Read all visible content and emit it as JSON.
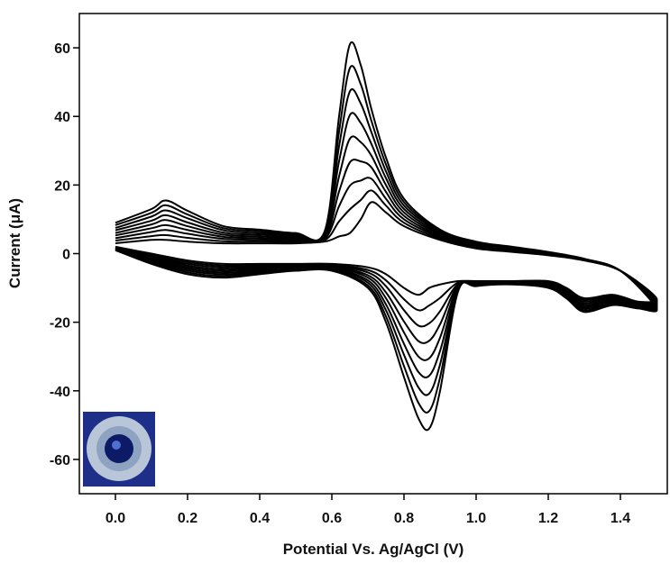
{
  "chart_data": {
    "type": "line",
    "xlabel": "Potential Vs. Ag/AgCl (V)",
    "ylabel": "Current (μA)",
    "xlim": [
      -0.1,
      1.53
    ],
    "ylim": [
      -70,
      70
    ],
    "xticks": [
      {
        "value": 0,
        "label": "0.0"
      },
      0.2,
      0.4,
      0.6,
      0.8,
      {
        "value": 1,
        "label": "1.0"
      },
      1.2,
      1.4
    ],
    "yticks": [
      -60,
      -40,
      -20,
      0,
      20,
      40,
      60
    ],
    "x": [
      0,
      0.1,
      0.14,
      0.2,
      0.3,
      0.4,
      0.5,
      0.58,
      0.62,
      0.65,
      0.68,
      0.71,
      0.75,
      0.8,
      0.9,
      1.0,
      1.1,
      1.2,
      1.3,
      1.4,
      1.5,
      1.45,
      1.38,
      1.3,
      1.25,
      1.2,
      1.1,
      1.0,
      0.95,
      0.9,
      0.87,
      0.84,
      0.8,
      0.75,
      0.7,
      0.6,
      0.5,
      0.4,
      0.3,
      0.2,
      0.1,
      0
    ],
    "series": [
      {
        "color": "#000000",
        "values": [
          3,
          4,
          4,
          3.5,
          3,
          3,
          3,
          3.5,
          5,
          6,
          10,
          15,
          12,
          8,
          4,
          1.5,
          0.5,
          -0.5,
          -2,
          -5,
          -13,
          -14,
          -12,
          -13,
          -10,
          -8,
          -8,
          -8,
          -8,
          -9,
          -10,
          -12,
          -10,
          -6,
          -4,
          -3,
          -3,
          -3,
          -3,
          -2,
          0,
          2
        ]
      },
      {
        "color": "#000000",
        "values": [
          3.8,
          5.1,
          5.4,
          4.6,
          3.6,
          3.5,
          3.4,
          3.9,
          9.4,
          12.9,
          15.6,
          18.4,
          14,
          9,
          4.4,
          1.8,
          0.7,
          -0.4,
          -1.9,
          -5,
          -13.4,
          -14.3,
          -12.4,
          -13.5,
          -10.4,
          -8.3,
          -8.1,
          -8.2,
          -8.4,
          -12.9,
          -15.1,
          -16.5,
          -13.3,
          -7.8,
          -4.8,
          -3.3,
          -3.3,
          -3.4,
          -3.5,
          -2.5,
          -0.4,
          1.9
        ]
      },
      {
        "color": "#000000",
        "values": [
          4.5,
          6.3,
          6.9,
          5.8,
          4.3,
          4,
          3.8,
          4.3,
          13.8,
          19.8,
          21.3,
          21.8,
          16,
          10,
          4.8,
          2,
          0.9,
          -0.3,
          -1.9,
          -5,
          -13.8,
          -14.5,
          -12.8,
          -14,
          -10.8,
          -8.5,
          -8.3,
          -8.4,
          -8.8,
          -16.8,
          -20.3,
          -21,
          -16.5,
          -9.5,
          -5.5,
          -3.5,
          -3.5,
          -3.8,
          -4,
          -3,
          -0.8,
          1.8
        ]
      },
      {
        "color": "#000000",
        "values": [
          5.3,
          7.4,
          8.3,
          6.9,
          4.9,
          4.5,
          4.1,
          4.6,
          18.1,
          26.6,
          26.9,
          25.1,
          18,
          11,
          5.1,
          2.3,
          1.1,
          -0.1,
          -1.8,
          -5,
          -14.1,
          -14.8,
          -13.1,
          -14.5,
          -11.1,
          -8.8,
          -8.4,
          -8.6,
          -9.1,
          -20.6,
          -25.4,
          -25.5,
          -19.8,
          -11.3,
          -6.3,
          -3.8,
          -3.8,
          -4.1,
          -4.5,
          -3.5,
          -1.1,
          1.6
        ]
      },
      {
        "color": "#000000",
        "values": [
          6,
          8.5,
          9.8,
          8,
          5.5,
          5,
          4.5,
          5,
          22.5,
          33.5,
          32.5,
          28.5,
          20,
          12,
          5.5,
          2.5,
          1.3,
          0,
          -1.8,
          -5,
          -14.5,
          -15,
          -13.5,
          -15,
          -11.5,
          -9,
          -8.5,
          -8.8,
          -9.5,
          -24.5,
          -30.5,
          -30,
          -23,
          -13,
          -7,
          -4,
          -4,
          -4.5,
          -5,
          -4,
          -1.5,
          1.5
        ]
      },
      {
        "color": "#000000",
        "values": [
          6.8,
          9.6,
          11.2,
          9.1,
          6.1,
          5.5,
          4.9,
          5.4,
          26.9,
          40.4,
          38.1,
          31.9,
          22,
          13,
          5.9,
          2.8,
          1.4,
          0.1,
          -1.7,
          -5,
          -14.9,
          -15.3,
          -13.9,
          -15.5,
          -11.9,
          -9.3,
          -8.6,
          -8.9,
          -9.9,
          -28.4,
          -35.6,
          -34.5,
          -26.3,
          -14.8,
          -7.8,
          -4.3,
          -4.3,
          -4.9,
          -5.5,
          -4.5,
          -1.9,
          1.4
        ]
      },
      {
        "color": "#000000",
        "values": [
          7.5,
          10.8,
          12.6,
          10.3,
          6.8,
          6,
          5.3,
          5.8,
          31.3,
          47.3,
          43.8,
          35.3,
          24,
          14,
          6.3,
          3,
          1.6,
          0.3,
          -1.6,
          -5,
          -15.3,
          -15.5,
          -14.3,
          -16,
          -12.3,
          -9.5,
          -8.8,
          -9.1,
          -10.3,
          -32.3,
          -40.8,
          -39,
          -29.5,
          -16.5,
          -8.5,
          -4.5,
          -4.5,
          -5.3,
          -6,
          -5,
          -2.3,
          1.3
        ]
      },
      {
        "color": "#000000",
        "values": [
          8.3,
          11.9,
          14.1,
          11.4,
          7.4,
          6.5,
          5.6,
          6.1,
          35.6,
          54.1,
          49.4,
          38.6,
          26,
          15,
          6.6,
          3.3,
          1.8,
          0.4,
          -1.6,
          -5,
          -15.6,
          -15.8,
          -14.6,
          -16.5,
          -12.6,
          -9.8,
          -8.9,
          -9.3,
          -10.6,
          -36.1,
          -45.9,
          -43.5,
          -32.8,
          -18.3,
          -9.3,
          -4.8,
          -4.8,
          -5.6,
          -6.5,
          -5.5,
          -2.6,
          1.1
        ]
      },
      {
        "color": "#000000",
        "values": [
          9,
          13,
          15.5,
          12.5,
          8,
          7,
          6,
          6.5,
          40,
          61,
          55,
          42,
          28,
          16,
          7,
          3.5,
          2,
          0.5,
          -1.5,
          -5,
          -16,
          -16,
          -15,
          -17,
          -13,
          -10,
          -9,
          -9.5,
          -11,
          -40,
          -51,
          -48,
          -36,
          -20,
          -10,
          -5,
          -5,
          -6,
          -7,
          -6,
          -3,
          1
        ]
      }
    ]
  }
}
